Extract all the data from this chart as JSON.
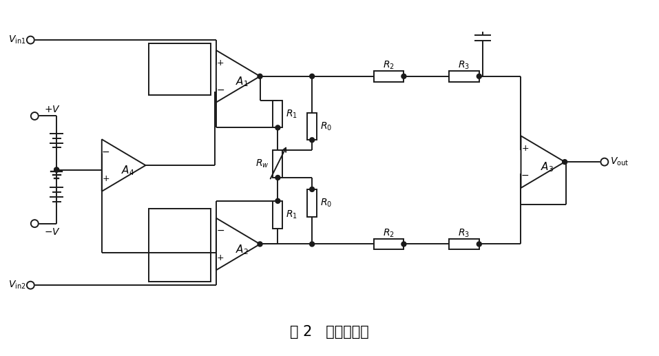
{
  "title": "图 2   前级放大器",
  "title_fontsize": 15,
  "bg_color": "#ffffff",
  "line_color": "#1a1a1a",
  "line_width": 1.4
}
